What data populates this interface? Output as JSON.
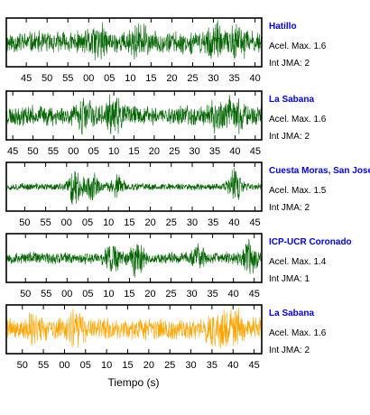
{
  "chart_data": [
    {
      "type": "line",
      "station": "Hatillo",
      "peak_label": "Acel. Max. 1.6",
      "intensity_label": "Int JMA: 2",
      "color": "#006400",
      "tick_labels": [
        "45",
        "50",
        "55",
        "00",
        "05",
        "10",
        "15",
        "20",
        "25",
        "30",
        "35",
        "40"
      ],
      "tick_seconds": [
        45,
        50,
        55,
        60,
        65,
        70,
        75,
        80,
        85,
        90,
        95,
        100
      ],
      "xlim_seconds": [
        40.2,
        101.6
      ],
      "amplitude_profile": {
        "base": 0.55,
        "bursts": [
          [
            62,
            0.9
          ],
          [
            72,
            0.85
          ],
          [
            90,
            0.9
          ],
          [
            96,
            0.85
          ]
        ]
      },
      "seed": 11
    },
    {
      "type": "line",
      "station": "La Sabana",
      "peak_label": "Acel. Max. 1.6",
      "intensity_label": "Int JMA: 2",
      "color": "#006400",
      "tick_labels": [
        "45",
        "50",
        "55",
        "00",
        "05",
        "10",
        "15",
        "20",
        "25",
        "30",
        "35",
        "40",
        "45"
      ],
      "tick_seconds": [
        45,
        50,
        55,
        60,
        65,
        70,
        75,
        80,
        85,
        90,
        95,
        100,
        105
      ],
      "xlim_seconds": [
        43.4,
        106.6
      ],
      "amplitude_profile": {
        "base": 0.5,
        "bursts": [
          [
            63,
            0.9
          ],
          [
            70,
            0.8
          ],
          [
            96,
            0.95
          ],
          [
            100,
            0.9
          ]
        ]
      },
      "seed": 23
    },
    {
      "type": "line",
      "station": "Cuesta Moras, San Jose",
      "peak_label": "Acel. Max. 1.5",
      "intensity_label": "Int JMA: 2",
      "color": "#006400",
      "tick_labels": [
        "50",
        "55",
        "00",
        "05",
        "10",
        "15",
        "20",
        "25",
        "30",
        "35",
        "40",
        "45"
      ],
      "tick_seconds": [
        50,
        55,
        60,
        65,
        70,
        75,
        80,
        85,
        90,
        95,
        100,
        105
      ],
      "xlim_seconds": [
        45.6,
        106.6
      ],
      "amplitude_profile": {
        "base": 0.18,
        "bursts": [
          [
            62,
            0.95
          ],
          [
            66,
            0.6
          ],
          [
            72,
            0.5
          ],
          [
            100,
            0.8
          ]
        ]
      },
      "seed": 37
    },
    {
      "type": "line",
      "station": "ICP-UCR Coronado",
      "peak_label": "Acel. Max. 1.4",
      "intensity_label": "Int JMA: 1",
      "color": "#006400",
      "tick_labels": [
        "50",
        "55",
        "00",
        "05",
        "10",
        "15",
        "20",
        "25",
        "30",
        "35",
        "40",
        "45"
      ],
      "tick_seconds": [
        50,
        55,
        60,
        65,
        70,
        75,
        80,
        85,
        90,
        95,
        100,
        105
      ],
      "xlim_seconds": [
        45.4,
        106.8
      ],
      "amplitude_profile": {
        "base": 0.3,
        "bursts": [
          [
            71,
            0.75
          ],
          [
            77,
            0.85
          ],
          [
            92,
            0.5
          ],
          [
            104,
            0.9
          ]
        ]
      },
      "seed": 53
    },
    {
      "type": "line",
      "station": "La Sabana",
      "peak_label": "Acel. Max. 1.6",
      "intensity_label": "Int JMA: 2",
      "color": "#ffa500",
      "tick_labels": [
        "50",
        "55",
        "00",
        "05",
        "10",
        "15",
        "20",
        "25",
        "30",
        "35",
        "40",
        "45"
      ],
      "tick_seconds": [
        50,
        55,
        60,
        65,
        70,
        75,
        80,
        85,
        90,
        95,
        100,
        105
      ],
      "xlim_seconds": [
        46.2,
        106.8
      ],
      "amplitude_profile": {
        "base": 0.55,
        "bursts": [
          [
            53,
            0.8
          ],
          [
            63,
            0.9
          ],
          [
            96,
            0.95
          ],
          [
            100,
            0.9
          ]
        ]
      },
      "seed": 71
    }
  ],
  "xlabel": "Tiempo (s)"
}
